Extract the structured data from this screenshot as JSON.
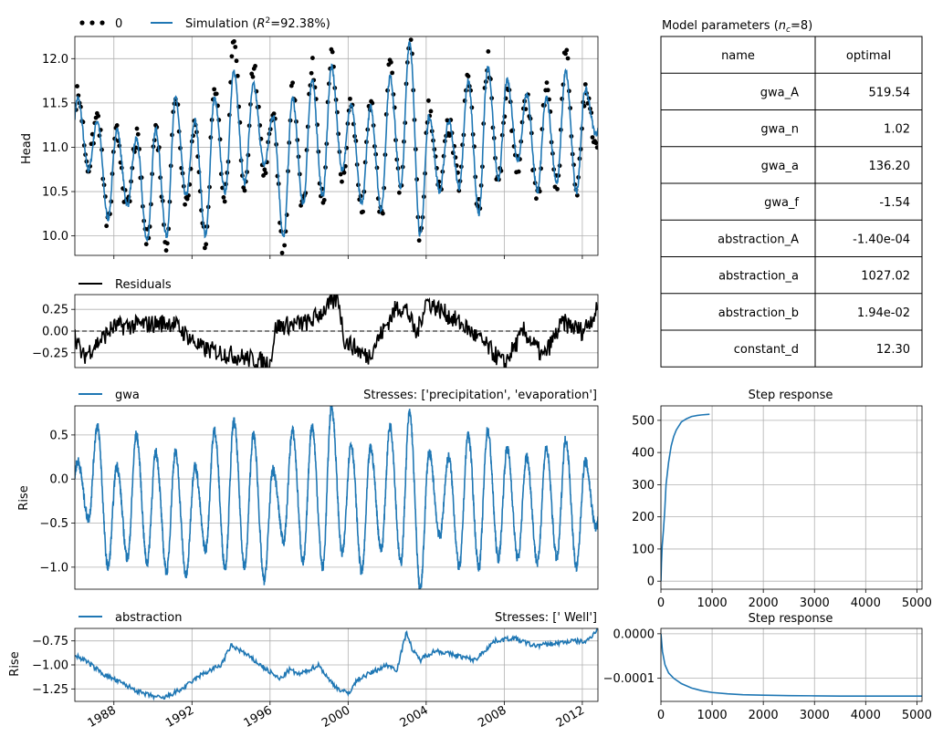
{
  "colors": {
    "simulation": "#1f77b4",
    "observed": "#000000",
    "residuals": "#000000",
    "contribution": "#1f77b4",
    "grid": "#b0b0b0"
  },
  "head_panel": {
    "legend": {
      "observed": "0",
      "simulation_prefix": "Simulation (",
      "r2_symbol": "R",
      "r2_exponent": "2",
      "r2_value": "=92.38%)"
    },
    "ylabel": "Head"
  },
  "residual_panel": {
    "legend": "Residuals"
  },
  "gwa_panel": {
    "legend": "gwa",
    "stresses": "Stresses: ['precipitation', 'evaporation']",
    "ylabel": "Rise"
  },
  "abs_panel": {
    "legend": "abstraction",
    "stresses": "Stresses: [' Well']",
    "ylabel": "Rise"
  },
  "params_table": {
    "title_prefix": "Model parameters (",
    "title_n": "n",
    "title_sub": "c",
    "title_suffix": "=8)",
    "headers": [
      "name",
      "optimal"
    ],
    "rows": [
      {
        "name": "gwa_A",
        "optimal": "519.54"
      },
      {
        "name": "gwa_n",
        "optimal": "1.02"
      },
      {
        "name": "gwa_a",
        "optimal": "136.20"
      },
      {
        "name": "gwa_f",
        "optimal": "-1.54"
      },
      {
        "name": "abstraction_A",
        "optimal": "-1.40e-04"
      },
      {
        "name": "abstraction_a",
        "optimal": "1027.02"
      },
      {
        "name": "abstraction_b",
        "optimal": "1.94e-02"
      },
      {
        "name": "constant_d",
        "optimal": "12.30"
      }
    ]
  },
  "step_gwa": {
    "title": "Step response"
  },
  "step_abs": {
    "title": "Step response"
  },
  "chart_data": [
    {
      "panel": "head",
      "type": "line",
      "ylabel": "Head",
      "xlim": [
        1986.0,
        2012.8
      ],
      "ylim": [
        9.78,
        12.25
      ],
      "x_ticks": [
        1988,
        1992,
        1996,
        2000,
        2004,
        2008,
        2012
      ],
      "y_ticks": [
        10.0,
        10.5,
        11.0,
        11.5,
        12.0
      ],
      "y_tick_labels": [
        "10.0",
        "10.5",
        "11.0",
        "11.5",
        "12.0"
      ],
      "grid": true,
      "legend_position": "top-left, above plot",
      "series": [
        {
          "name": "0",
          "style": "points",
          "color": "#000000"
        },
        {
          "name": "Simulation (R²=92.38%)",
          "style": "line",
          "color": "#1f77b4"
        }
      ],
      "annual_cycle": {
        "years": [
          1986,
          1987,
          1988,
          1989,
          1990,
          1991,
          1992,
          1993,
          1994,
          1995,
          1996,
          1997,
          1998,
          1999,
          2000,
          2001,
          2002,
          2003,
          2004,
          2005,
          2006,
          2007,
          2008,
          2009,
          2010,
          2011,
          2012
        ],
        "simulated_max": [
          11.55,
          11.3,
          11.2,
          11.1,
          11.2,
          11.55,
          11.3,
          11.55,
          11.85,
          11.7,
          11.35,
          11.55,
          11.75,
          11.9,
          11.5,
          11.45,
          11.8,
          12.2,
          11.35,
          11.3,
          11.75,
          11.9,
          11.75,
          11.6,
          11.55,
          11.85,
          11.65
        ],
        "simulated_min": [
          10.75,
          10.2,
          10.35,
          9.95,
          10.0,
          10.45,
          10.0,
          10.5,
          10.6,
          10.8,
          9.98,
          10.35,
          10.45,
          10.75,
          10.35,
          10.3,
          10.55,
          10.0,
          10.5,
          10.55,
          10.25,
          10.65,
          10.85,
          10.5,
          10.6,
          10.5,
          11.15
        ],
        "observed_max": [
          11.6,
          11.35,
          11.15,
          11.1,
          11.2,
          11.6,
          11.2,
          11.7,
          12.15,
          11.9,
          11.4,
          11.65,
          11.9,
          12.1,
          11.5,
          11.5,
          11.95,
          12.25,
          11.45,
          11.25,
          11.8,
          12.0,
          11.6,
          11.55,
          11.7,
          12.1,
          11.6
        ],
        "observed_min": [
          10.8,
          10.15,
          10.3,
          9.95,
          9.95,
          10.4,
          9.92,
          10.45,
          10.55,
          10.75,
          9.78,
          10.3,
          10.4,
          10.65,
          10.3,
          10.2,
          10.5,
          9.98,
          10.5,
          10.6,
          10.3,
          10.6,
          10.8,
          10.4,
          10.55,
          10.45,
          11.1
        ]
      }
    },
    {
      "panel": "residuals",
      "type": "line",
      "xlim": [
        1986.0,
        2012.8
      ],
      "ylim": [
        -0.42,
        0.42
      ],
      "y_ticks": [
        -0.25,
        0.0,
        0.25
      ],
      "y_tick_labels": [
        "−0.25",
        "0.00",
        "0.25"
      ],
      "zero_line": "dashed",
      "grid": true,
      "series": [
        {
          "name": "Residuals",
          "color": "#000000"
        }
      ],
      "key_points": {
        "x": [
          1986.0,
          1986.4,
          1988.0,
          1991.0,
          1992.5,
          1996.0,
          1996.3,
          1998.0,
          1999.5,
          1999.8,
          2001.0,
          2002.5,
          2003.0,
          2003.5,
          2004.0,
          2006.0,
          2007.0,
          2008.0,
          2009.0,
          2010.0,
          2011.0,
          2012.0,
          2012.8
        ],
        "y": [
          -0.05,
          -0.3,
          0.05,
          0.1,
          -0.2,
          -0.37,
          0.05,
          0.1,
          0.38,
          -0.1,
          -0.3,
          0.28,
          0.25,
          -0.05,
          0.35,
          0.05,
          -0.15,
          -0.38,
          0.0,
          -0.3,
          0.1,
          0.0,
          0.25
        ]
      }
    },
    {
      "panel": "gwa",
      "type": "line",
      "ylabel": "Rise",
      "xlim": [
        1986.0,
        2012.8
      ],
      "ylim": [
        -1.25,
        0.83
      ],
      "y_ticks": [
        -1.0,
        -0.5,
        0.0,
        0.5
      ],
      "y_tick_labels": [
        "−1.0",
        "−0.5",
        "0.0",
        "0.5"
      ],
      "grid": true,
      "series": [
        {
          "name": "gwa",
          "color": "#1f77b4"
        }
      ],
      "annual_cycle": {
        "years": [
          1986,
          1987,
          1988,
          1989,
          1990,
          1991,
          1992,
          1993,
          1994,
          1995,
          1996,
          1997,
          1998,
          1999,
          2000,
          2001,
          2002,
          2003,
          2004,
          2005,
          2006,
          2007,
          2008,
          2009,
          2010,
          2011,
          2012
        ],
        "max": [
          0.2,
          0.6,
          0.15,
          0.5,
          0.3,
          0.3,
          0.15,
          0.55,
          0.65,
          0.5,
          0.1,
          0.55,
          0.6,
          0.82,
          0.4,
          0.35,
          0.6,
          0.75,
          0.3,
          0.25,
          0.5,
          0.55,
          0.35,
          0.25,
          0.35,
          0.45,
          0.2
        ],
        "min": [
          -0.45,
          -1.0,
          -0.9,
          -0.95,
          -1.05,
          -1.1,
          -0.8,
          -1.0,
          -1.0,
          -1.15,
          -0.7,
          -0.95,
          -1.0,
          -0.85,
          -1.05,
          -0.8,
          -0.95,
          -1.25,
          -0.65,
          -1.0,
          -1.0,
          -0.9,
          -0.9,
          -0.95,
          -0.9,
          -1.0,
          -0.55
        ]
      }
    },
    {
      "panel": "abstraction",
      "type": "line",
      "ylabel": "Rise",
      "xlim": [
        1986.0,
        2012.8
      ],
      "ylim": [
        -1.38,
        -0.62
      ],
      "x_ticks": [
        1988,
        1992,
        1996,
        2000,
        2004,
        2008,
        2012
      ],
      "x_tick_labels": [
        "1988",
        "1992",
        "1996",
        "2000",
        "2004",
        "2008",
        "2012"
      ],
      "y_ticks": [
        -1.25,
        -1.0,
        -0.75
      ],
      "y_tick_labels": [
        "−1.25",
        "−1.00",
        "−0.75"
      ],
      "grid": true,
      "series": [
        {
          "name": "abstraction",
          "color": "#1f77b4"
        }
      ],
      "key_points": {
        "x": [
          1986.0,
          1986.5,
          1987.5,
          1988.5,
          1989.5,
          1990.5,
          1991.5,
          1992.5,
          1993.5,
          1994.0,
          1994.5,
          1995.5,
          1996.5,
          1997.0,
          1997.5,
          1998.5,
          1999.0,
          1999.5,
          2000.0,
          2000.5,
          2001.0,
          2002.0,
          2002.5,
          2003.0,
          2003.3,
          2003.7,
          2004.0,
          2004.5,
          2005.5,
          2006.5,
          2007.0,
          2007.5,
          2008.5,
          2009.5,
          2010.5,
          2011.5,
          2012.2,
          2012.8
        ],
        "y": [
          -0.9,
          -0.95,
          -1.1,
          -1.2,
          -1.3,
          -1.35,
          -1.25,
          -1.1,
          -1.0,
          -0.8,
          -0.85,
          -1.0,
          -1.15,
          -1.05,
          -1.1,
          -1.0,
          -1.15,
          -1.25,
          -1.3,
          -1.15,
          -1.1,
          -1.0,
          -1.05,
          -0.65,
          -0.85,
          -0.95,
          -0.9,
          -0.85,
          -0.9,
          -0.95,
          -0.85,
          -0.75,
          -0.72,
          -0.8,
          -0.78,
          -0.75,
          -0.76,
          -0.62
        ]
      }
    },
    {
      "panel": "step_response_gwa",
      "type": "line",
      "title": "Step response",
      "xlim": [
        0,
        5100
      ],
      "ylim": [
        -25,
        545
      ],
      "x_ticks": [
        0,
        1000,
        2000,
        3000,
        4000,
        5000
      ],
      "x_tick_labels": [
        "0",
        "1000",
        "2000",
        "3000",
        "4000",
        "5000"
      ],
      "y_ticks": [
        0,
        100,
        200,
        300,
        400,
        500
      ],
      "y_tick_labels": [
        "0",
        "100",
        "200",
        "300",
        "400",
        "500"
      ],
      "grid": true,
      "points": {
        "x": [
          0,
          10,
          25,
          50,
          75,
          100,
          150,
          200,
          250,
          300,
          400,
          500,
          600,
          700,
          800,
          950
        ],
        "y": [
          0,
          55,
          110,
          160,
          220,
          300,
          370,
          420,
          450,
          470,
          495,
          505,
          512,
          515,
          517,
          519
        ]
      }
    },
    {
      "panel": "step_response_abstraction",
      "type": "line",
      "title": "Step response",
      "xlim": [
        0,
        5100
      ],
      "ylim": [
        -0.000152,
        1.2e-05
      ],
      "x_ticks": [
        0,
        1000,
        2000,
        3000,
        4000,
        5000
      ],
      "x_tick_labels": [
        "0",
        "1000",
        "2000",
        "3000",
        "4000",
        "5000"
      ],
      "y_ticks": [
        0.0,
        -0.0001
      ],
      "y_tick_labels": [
        "0.0000",
        "−0.0001"
      ],
      "grid": true,
      "points": {
        "x": [
          0,
          30,
          80,
          150,
          250,
          400,
          600,
          800,
          1000,
          1300,
          1600,
          2000,
          2500,
          3000,
          3500,
          4000,
          4500,
          5000,
          5100
        ],
        "y": [
          0,
          -4e-05,
          -7e-05,
          -8.8e-05,
          -0.0001,
          -0.000112,
          -0.000122,
          -0.000128,
          -0.000132,
          -0.000135,
          -0.000137,
          -0.000138,
          -0.000139,
          -0.0001395,
          -0.00014,
          -0.00014,
          -0.00014,
          -0.00014,
          -0.00014
        ]
      }
    }
  ]
}
